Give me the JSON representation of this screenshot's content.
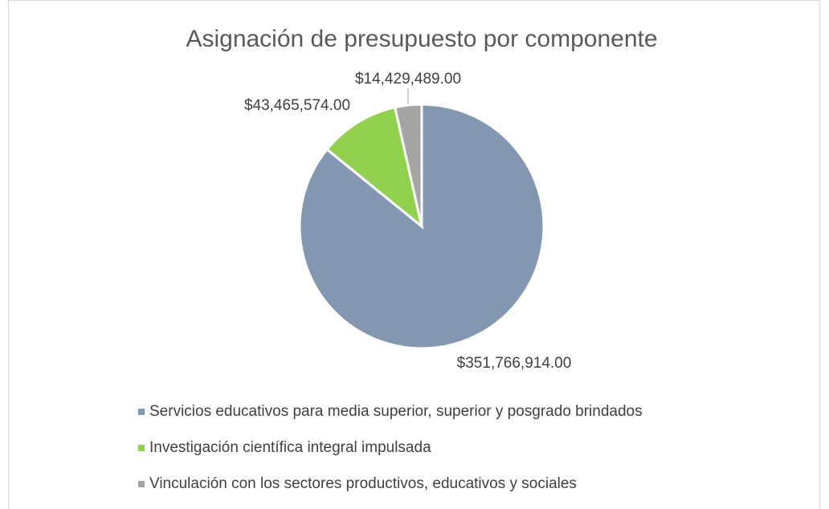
{
  "chart_data": {
    "type": "pie",
    "title": "Asignación de presupuesto por componente",
    "categories": [
      "Servicios educativos para media superior, superior y posgrado brindados",
      "Investigación científica integral impulsada",
      "Vinculación con los sectores productivos, educativos y sociales"
    ],
    "values": [
      351766914,
      43465574,
      14429489
    ],
    "value_labels": [
      "$351,766,914.00",
      "$43,465,574.00",
      "$14,429,489.00"
    ],
    "colors": [
      "#8497b0",
      "#92d050",
      "#a5a5a5"
    ],
    "legend": "bottom"
  }
}
